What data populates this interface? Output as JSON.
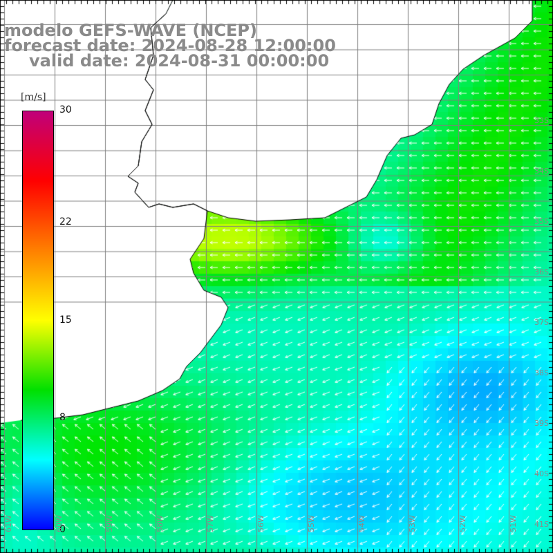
{
  "title": {
    "model": "modelo GEFS-WAVE (NCEP)",
    "forecast": "forecast date: 2024-08-28 12:00:00",
    "valid": "valid date: 2024-08-31 00:00:00"
  },
  "legend": {
    "unit": "[m/s]",
    "min": 0,
    "max": 30,
    "ticks": [
      "30",
      "22",
      "15",
      "8",
      "0"
    ],
    "tick_values": [
      30,
      22,
      15,
      8,
      0
    ],
    "colors": [
      "#0000ff",
      "#00ffff",
      "#00e000",
      "#ffff00",
      "#ff8000",
      "#ff0000",
      "#c0007a"
    ]
  },
  "map": {
    "lat_labels": [
      "33S",
      "34S",
      "35S",
      "36S",
      "37S",
      "38S",
      "39S",
      "40S",
      "41S"
    ],
    "lon_labels": [
      "61W",
      "60W",
      "59W",
      "58W",
      "57W",
      "56W",
      "55W",
      "54W",
      "53W",
      "52W",
      "51W"
    ],
    "ocean_background": "#ffffff",
    "land_color": "#ffffff",
    "grid_color": "#808080",
    "coastline_color": "#000000"
  }
}
